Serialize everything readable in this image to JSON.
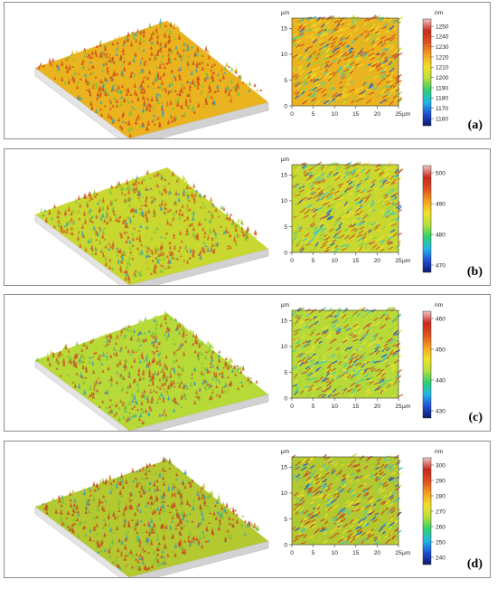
{
  "panels": [
    {
      "label": "(a)",
      "map_axes": {
        "x_unit": "µm",
        "y_unit": "µm",
        "x_ticks": [
          "0",
          "5",
          "10",
          "15",
          "20",
          "25"
        ],
        "y_ticks": [
          "0",
          "5",
          "10",
          "15"
        ]
      },
      "colorbar": {
        "unit": "nm",
        "ticks": [
          "1160",
          "1170",
          "1180",
          "1190",
          "1200",
          "1210",
          "1220",
          "1230",
          "1240",
          "1250"
        ]
      },
      "dominant_color": "#e9b41f",
      "accent_color": "#d05020"
    },
    {
      "label": "(b)",
      "map_axes": {
        "x_unit": "µm",
        "y_unit": "µm",
        "x_ticks": [
          "0",
          "5",
          "10",
          "15",
          "20",
          "25"
        ],
        "y_ticks": [
          "0",
          "5",
          "10",
          "15"
        ]
      },
      "colorbar": {
        "unit": "",
        "ticks": [
          "470",
          "480",
          "490",
          "500"
        ]
      },
      "dominant_color": "#c8d830",
      "accent_color": "#d06028"
    },
    {
      "label": "(c)",
      "map_axes": {
        "x_unit": "µm",
        "y_unit": "µm",
        "x_ticks": [
          "0",
          "5",
          "10",
          "15",
          "20",
          "25"
        ],
        "y_ticks": [
          "0",
          "5",
          "10",
          "15"
        ]
      },
      "colorbar": {
        "unit": "nm",
        "ticks": [
          "430",
          "440",
          "450",
          "460"
        ]
      },
      "dominant_color": "#b8da38",
      "accent_color": "#c85a28"
    },
    {
      "label": "(d)",
      "map_axes": {
        "x_unit": "µm",
        "y_unit": "µm",
        "x_ticks": [
          "0",
          "5",
          "10",
          "15",
          "20",
          "25"
        ],
        "y_ticks": [
          "0",
          "5",
          "10",
          "15"
        ]
      },
      "colorbar": {
        "unit": "nm",
        "ticks": [
          "240",
          "250",
          "260",
          "270",
          "280",
          "290",
          "300"
        ]
      },
      "dominant_color": "#b4c830",
      "accent_color": "#c84a20"
    }
  ]
}
